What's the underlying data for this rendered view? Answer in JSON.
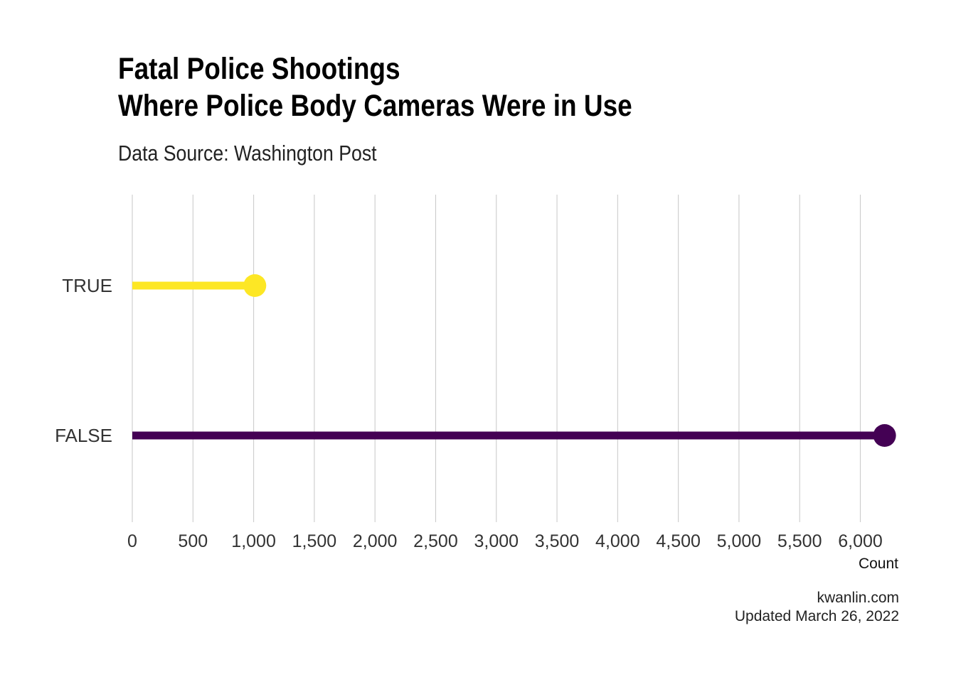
{
  "chart_data": {
    "type": "lollipop",
    "title_lines": [
      "Fatal Police Shootings",
      "Where Police Body Cameras Were in Use"
    ],
    "subtitle": "Data Source: Washington Post",
    "caption_lines": [
      "kwanlin.com",
      "Updated March 26, 2022"
    ],
    "xlabel": "Count",
    "ylabel": "",
    "xlim": [
      0,
      6200
    ],
    "x_ticks": [
      0,
      500,
      1000,
      1500,
      2000,
      2500,
      3000,
      3500,
      4000,
      4500,
      5000,
      5500,
      6000
    ],
    "x_tick_labels": [
      "0",
      "500",
      "1,000",
      "1,500",
      "2,000",
      "2,500",
      "3,000",
      "3,500",
      "4,000",
      "4,500",
      "5,000",
      "5,500",
      "6,000"
    ],
    "grid": "vertical",
    "legend": "none",
    "categories": [
      "TRUE",
      "FALSE"
    ],
    "values": [
      1010,
      6200
    ],
    "colors": [
      "#FDE725",
      "#440154"
    ]
  }
}
